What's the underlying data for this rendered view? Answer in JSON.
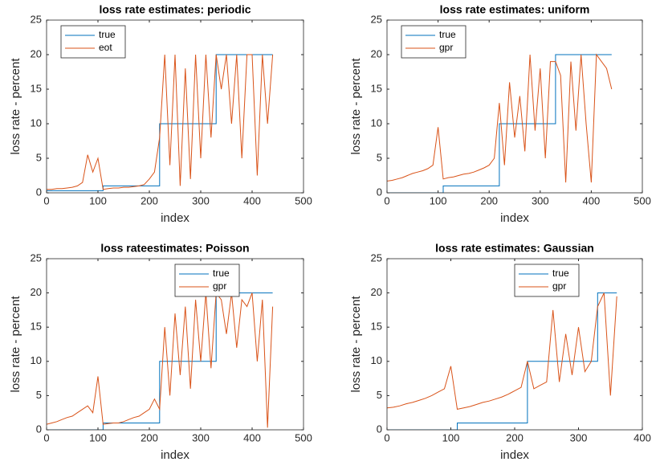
{
  "chart_data": [
    {
      "type": "line",
      "title": "loss rate estimates: periodic",
      "xlabel": "index",
      "ylabel": "loss rate - percent",
      "xlim": [
        0,
        500
      ],
      "xticks": [
        0,
        100,
        200,
        300,
        400,
        500
      ],
      "ylim": [
        0,
        25
      ],
      "yticks": [
        0,
        5,
        10,
        15,
        20,
        25
      ],
      "legend": "upper left",
      "grid": false,
      "series": [
        {
          "name": "true",
          "color": "#0072bd",
          "x": [
            0,
            110,
            110,
            220,
            220,
            330,
            330,
            440
          ],
          "values": [
            0.3,
            0.3,
            1,
            1,
            10,
            10,
            20,
            20
          ]
        },
        {
          "name": "eot",
          "color": "#d95319",
          "x": [
            0,
            10,
            20,
            30,
            40,
            50,
            60,
            70,
            80,
            90,
            100,
            110,
            120,
            130,
            140,
            150,
            160,
            170,
            180,
            190,
            200,
            210,
            220,
            230,
            240,
            250,
            260,
            270,
            280,
            290,
            300,
            310,
            320,
            330,
            340,
            350,
            360,
            370,
            380,
            390,
            400,
            410,
            420,
            430,
            440
          ],
          "values": [
            0.5,
            0.5,
            0.6,
            0.6,
            0.7,
            0.8,
            1,
            1.5,
            5.5,
            3,
            5,
            0.5,
            0.6,
            0.7,
            0.7,
            0.8,
            0.8,
            0.9,
            1,
            1.2,
            2,
            3,
            8,
            20,
            4,
            20,
            1,
            18,
            2,
            20,
            5,
            20,
            8,
            20,
            15,
            20,
            10,
            20,
            5,
            20,
            20,
            2.5,
            20,
            10,
            20
          ]
        }
      ]
    },
    {
      "type": "line",
      "title": "loss rate estimates: uniform",
      "xlabel": "index",
      "ylabel": "loss rate - percent",
      "xlim": [
        0,
        500
      ],
      "xticks": [
        0,
        100,
        200,
        300,
        400,
        500
      ],
      "ylim": [
        0,
        25
      ],
      "yticks": [
        0,
        5,
        10,
        15,
        20,
        25
      ],
      "legend": "upper left",
      "grid": false,
      "series": [
        {
          "name": "true",
          "color": "#0072bd",
          "x": [
            0,
            110,
            110,
            220,
            220,
            330,
            330,
            440
          ],
          "values": [
            0,
            0,
            1,
            1,
            10,
            10,
            20,
            20
          ]
        },
        {
          "name": "gpr",
          "color": "#d95319",
          "x": [
            0,
            10,
            20,
            30,
            40,
            50,
            60,
            70,
            80,
            90,
            100,
            110,
            120,
            130,
            140,
            150,
            160,
            170,
            180,
            190,
            200,
            210,
            220,
            230,
            240,
            250,
            260,
            270,
            280,
            290,
            300,
            310,
            320,
            330,
            340,
            350,
            360,
            370,
            380,
            390,
            400,
            410,
            420,
            430,
            440
          ],
          "values": [
            1.7,
            1.8,
            2,
            2.2,
            2.5,
            2.8,
            3,
            3.2,
            3.5,
            4,
            9.5,
            2,
            2.2,
            2.3,
            2.5,
            2.7,
            2.8,
            3,
            3.3,
            3.6,
            4,
            5,
            13,
            4,
            16,
            8,
            14,
            6,
            20,
            9,
            18,
            5,
            19,
            19,
            17,
            1.5,
            19,
            9,
            20,
            10,
            1.5,
            20,
            19,
            18,
            15
          ]
        }
      ]
    },
    {
      "type": "line",
      "title": "loss rateestimates: Poisson",
      "xlabel": "index",
      "ylabel": "loss rate - percent",
      "xlim": [
        0,
        500
      ],
      "xticks": [
        0,
        100,
        200,
        300,
        400,
        500
      ],
      "ylim": [
        0,
        25
      ],
      "yticks": [
        0,
        5,
        10,
        15,
        20,
        25
      ],
      "legend": "upper center",
      "grid": false,
      "series": [
        {
          "name": "true",
          "color": "#0072bd",
          "x": [
            0,
            110,
            110,
            220,
            220,
            330,
            330,
            440
          ],
          "values": [
            0,
            0,
            1,
            1,
            10,
            10,
            20,
            20
          ]
        },
        {
          "name": "gpr",
          "color": "#d95319",
          "x": [
            0,
            10,
            20,
            30,
            40,
            50,
            60,
            70,
            80,
            90,
            100,
            110,
            120,
            130,
            140,
            150,
            160,
            170,
            180,
            190,
            200,
            210,
            220,
            230,
            240,
            250,
            260,
            270,
            280,
            290,
            300,
            310,
            320,
            330,
            340,
            350,
            360,
            370,
            380,
            390,
            400,
            410,
            420,
            430,
            440
          ],
          "values": [
            0.8,
            1,
            1.2,
            1.5,
            1.8,
            2,
            2.5,
            3,
            3.5,
            2.5,
            7.8,
            0.8,
            0.9,
            1,
            1,
            1.2,
            1.5,
            1.8,
            2,
            2.5,
            3,
            4.5,
            3,
            15,
            5,
            17,
            8,
            18,
            6,
            19,
            10,
            20,
            9,
            20,
            19,
            14,
            20,
            12,
            19,
            18,
            20,
            10,
            19,
            0.3,
            18
          ]
        }
      ]
    },
    {
      "type": "line",
      "title": "loss rate estimates: Gaussian",
      "xlabel": "index",
      "ylabel": "loss rate - percent",
      "xlim": [
        0,
        400
      ],
      "xticks": [
        0,
        100,
        200,
        300,
        400
      ],
      "ylim": [
        0,
        25
      ],
      "yticks": [
        0,
        5,
        10,
        15,
        20,
        25
      ],
      "legend": "upper center",
      "grid": false,
      "series": [
        {
          "name": "true",
          "color": "#0072bd",
          "x": [
            0,
            110,
            110,
            220,
            220,
            330,
            330,
            360
          ],
          "values": [
            0,
            0,
            1,
            1,
            10,
            10,
            20,
            20
          ]
        },
        {
          "name": "gpr",
          "color": "#d95319",
          "x": [
            0,
            10,
            20,
            30,
            40,
            50,
            60,
            70,
            80,
            90,
            100,
            110,
            120,
            130,
            140,
            150,
            160,
            170,
            180,
            190,
            200,
            210,
            220,
            230,
            240,
            250,
            260,
            270,
            280,
            290,
            300,
            310,
            320,
            330,
            340,
            350,
            360
          ],
          "values": [
            3.2,
            3.3,
            3.5,
            3.8,
            4,
            4.3,
            4.6,
            5,
            5.5,
            6,
            9.3,
            3,
            3.2,
            3.4,
            3.7,
            4,
            4.2,
            4.5,
            4.8,
            5.2,
            5.7,
            6.2,
            10,
            6,
            6.5,
            7,
            17.5,
            7,
            14,
            8,
            15,
            8.5,
            10,
            18,
            20,
            5,
            19.5
          ]
        }
      ]
    }
  ]
}
